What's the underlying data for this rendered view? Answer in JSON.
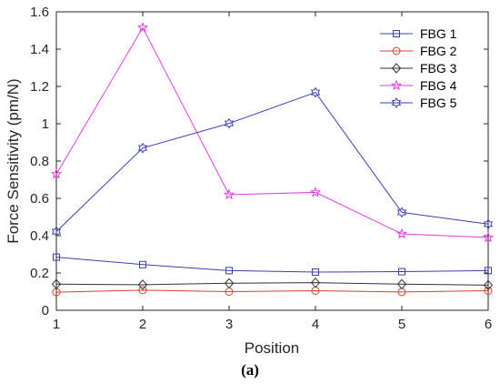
{
  "chart_data": {
    "type": "line",
    "xlabel": "Position",
    "ylabel": "Force Sensitivity (pm/N)",
    "xlim": [
      1,
      6
    ],
    "ylim": [
      0,
      1.6
    ],
    "x": [
      1,
      2,
      3,
      4,
      5,
      6
    ],
    "xticks": [
      "1",
      "2",
      "3",
      "4",
      "5",
      "6"
    ],
    "yticks": [
      "0",
      "0.2",
      "0.4",
      "0.6",
      "0.8",
      "1",
      "1.2",
      "1.4",
      "1.6"
    ],
    "legend_position": "top-right",
    "grid": false,
    "series": [
      {
        "name": "FBG 1",
        "color": "#3b3fb5",
        "marker": "square",
        "values": [
          0.285,
          0.245,
          0.213,
          0.205,
          0.207,
          0.213
        ]
      },
      {
        "name": "FBG 2",
        "color": "#d9412e",
        "marker": "circle",
        "values": [
          0.097,
          0.108,
          0.1,
          0.105,
          0.098,
          0.105
        ]
      },
      {
        "name": "FBG 3",
        "color": "#333333",
        "marker": "diamond",
        "values": [
          0.14,
          0.137,
          0.145,
          0.148,
          0.14,
          0.135
        ]
      },
      {
        "name": "FBG 4",
        "color": "#e33be3",
        "marker": "star",
        "values": [
          0.73,
          1.515,
          0.62,
          0.632,
          0.41,
          0.39
        ]
      },
      {
        "name": "FBG 5",
        "color": "#3b3fb5",
        "marker": "hexagram",
        "values": [
          0.422,
          0.87,
          1.002,
          1.168,
          0.525,
          0.462
        ]
      }
    ]
  },
  "caption": "(a)"
}
